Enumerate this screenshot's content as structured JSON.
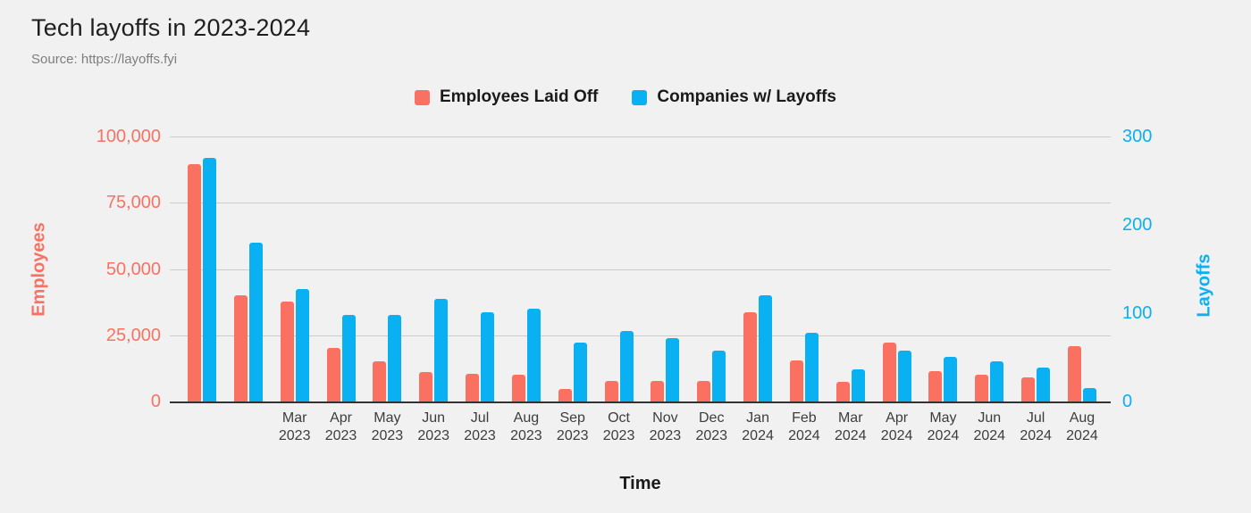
{
  "header": {
    "title": "Tech layoffs in 2023-2024",
    "source": "Source: https://layoffs.fyi"
  },
  "colors": {
    "employees": "#fb7161",
    "companies": "#09b0f2",
    "background": "#f1f1f2",
    "gridline": "#cbcbcb",
    "axis_line": "#333333"
  },
  "legend": {
    "items": [
      {
        "label": "Employees Laid Off",
        "color": "#fb7161"
      },
      {
        "label": "Companies w/ Layoffs",
        "color": "#09b0f2"
      }
    ]
  },
  "chart_data": {
    "type": "bar",
    "title": "Tech layoffs in 2023-2024",
    "xlabel": "Time",
    "grid": true,
    "legend_position": "top",
    "x_tick_labels": [
      "",
      "",
      "Mar 2023",
      "Apr 2023",
      "May 2023",
      "Jun 2023",
      "Jul 2023",
      "Aug 2023",
      "Sep 2023",
      "Oct 2023",
      "Nov 2023",
      "Dec 2023",
      "Jan 2024",
      "Feb 2024",
      "Mar 2024",
      "Apr 2024",
      "May 2024",
      "Jun 2024",
      "Jul 2024",
      "Aug 2024"
    ],
    "series": [
      {
        "name": "Employees Laid Off",
        "axis": "left",
        "color": "#fb7161",
        "values": [
          89600,
          40000,
          37800,
          20100,
          15100,
          11200,
          10600,
          10100,
          4700,
          7800,
          7800,
          7700,
          33800,
          15600,
          7500,
          22200,
          11300,
          10200,
          9200,
          20900
        ]
      },
      {
        "name": "Companies w/ Layoffs",
        "axis": "right",
        "color": "#09b0f2",
        "values": [
          276,
          180,
          127,
          98,
          98,
          116,
          101,
          105,
          67,
          80,
          72,
          58,
          120,
          78,
          36,
          58,
          51,
          45,
          38,
          15
        ]
      }
    ],
    "left_axis": {
      "title": "Employees",
      "min": 0,
      "max": 100000,
      "tick_labels": [
        "0",
        "25,000",
        "50,000",
        "75,000",
        "100,000"
      ],
      "color": "#fb7161"
    },
    "right_axis": {
      "title": "Layoffs",
      "min": 0,
      "max": 300,
      "tick_labels": [
        "0",
        "100",
        "200",
        "300"
      ],
      "color": "#09b0f2"
    }
  }
}
